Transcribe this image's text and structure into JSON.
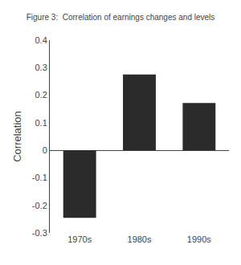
{
  "chart_data": {
    "type": "bar",
    "title": "Figure 3:  Correlation of earnings changes and levels",
    "ylabel": "Correlation",
    "categories": [
      "1970s",
      "1980s",
      "1990s"
    ],
    "values": [
      -0.245,
      0.275,
      0.172
    ],
    "color": "#2b2b2b",
    "ylim": [
      -0.3,
      0.4
    ],
    "yticks": [
      -0.3,
      -0.2,
      -0.1,
      0,
      0.1,
      0.2,
      0.3,
      0.4
    ],
    "grid": false
  }
}
